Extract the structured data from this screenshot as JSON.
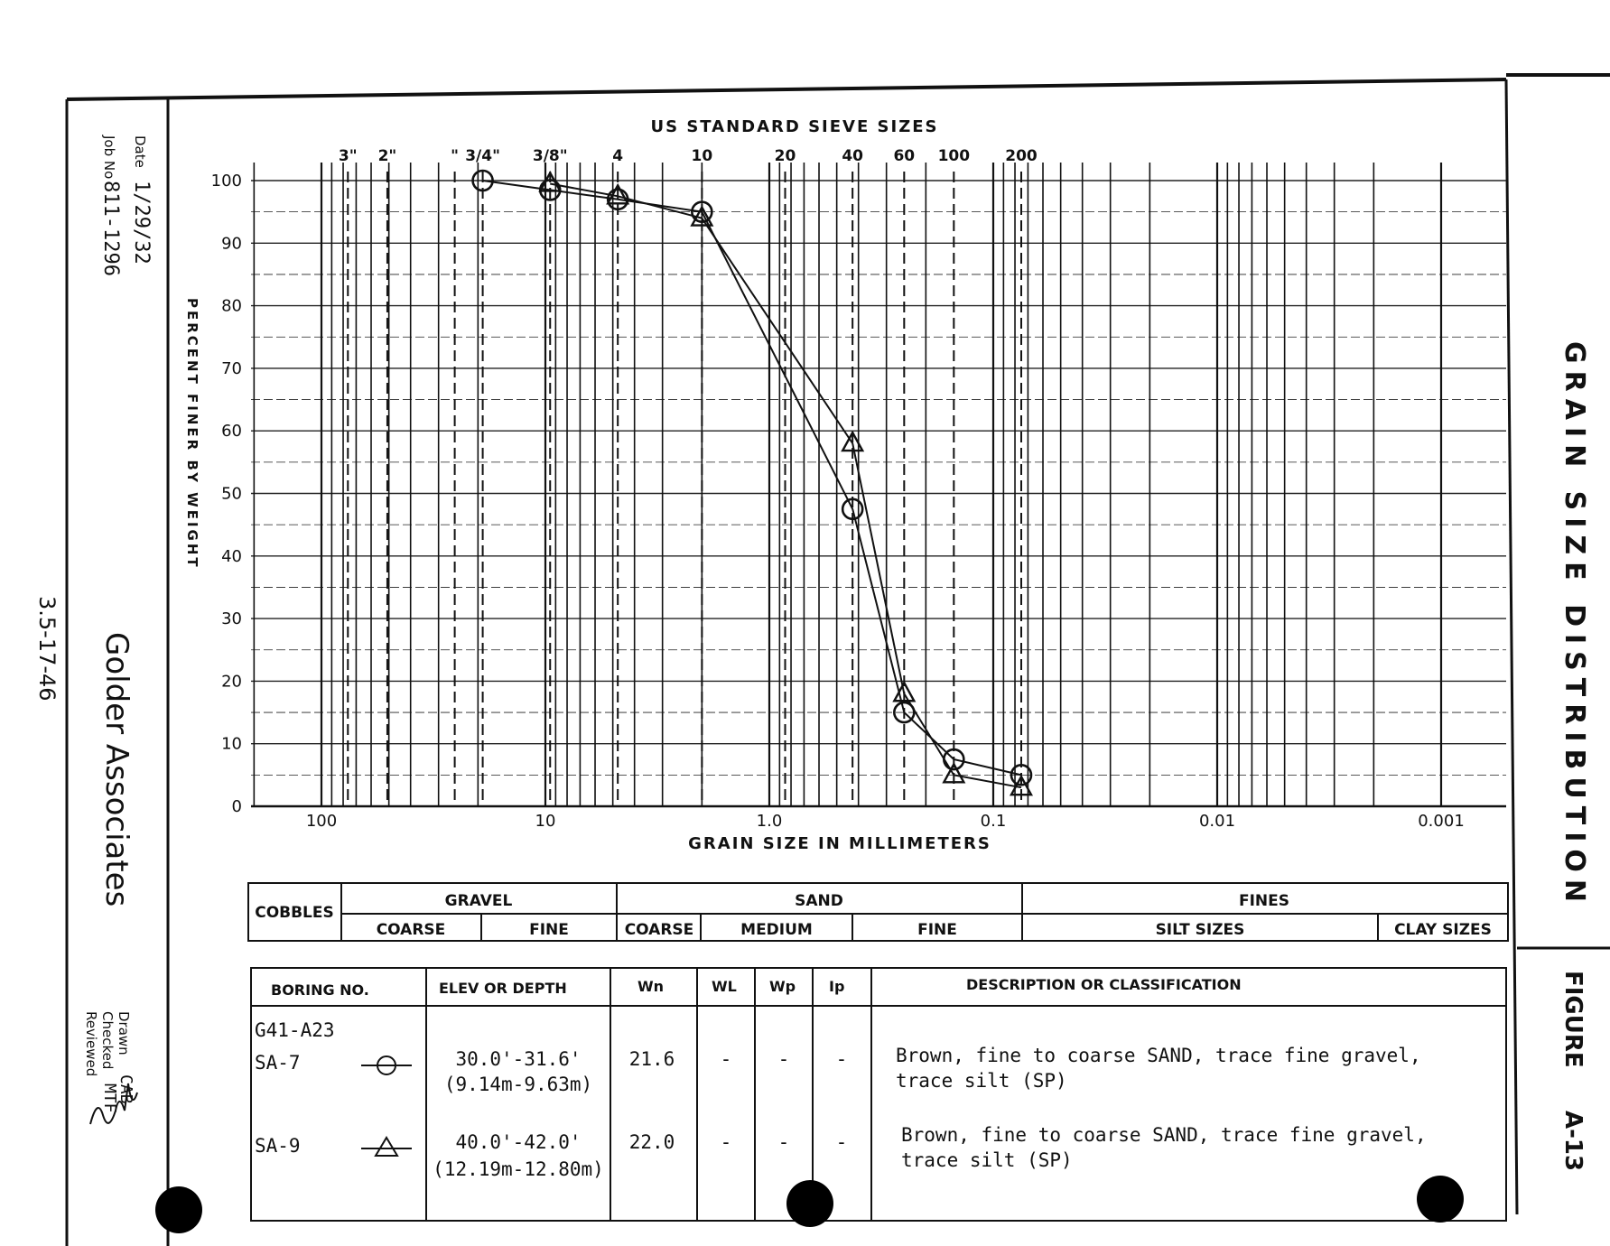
{
  "sheet": {
    "date_label": "Date",
    "date_value": "1/29/32",
    "job_label": "Job No",
    "job_value": "811-1296",
    "company": "Golder Associates",
    "page_ref": "3.5-17-46",
    "drawn_label": "Drawn",
    "drawn_value": "CAB",
    "checked_label": "Checked",
    "checked_value": "MTF",
    "reviewed_label": "Reviewed",
    "side_title": "GRAIN SIZE DISTRIBUTION",
    "figure_label": "FIGURE",
    "figure_value": "A-13"
  },
  "chart_data": {
    "type": "line",
    "title": "US STANDARD SIEVE SIZES",
    "xlabel": "GRAIN SIZE IN MILLIMETERS",
    "ylabel": "PERCENT FINER BY WEIGHT",
    "x_scale": "log-reversed",
    "xlim": [
      200,
      0.0007
    ],
    "ylim": [
      0,
      100
    ],
    "grid": true,
    "y_ticks": [
      "0",
      "10",
      "20",
      "30",
      "40",
      "50",
      "60",
      "70",
      "80",
      "90",
      "100"
    ],
    "x_ticks": [
      {
        "label": "100",
        "value": 100
      },
      {
        "label": "10",
        "value": 10
      },
      {
        "label": "1.0",
        "value": 1
      },
      {
        "label": "0.1",
        "value": 0.1
      },
      {
        "label": "0.01",
        "value": 0.01
      },
      {
        "label": "0.001",
        "value": 0.001
      }
    ],
    "sieves": [
      {
        "label": "3\"",
        "value": 76.2
      },
      {
        "label": "2\"",
        "value": 50.8
      },
      {
        "label": "\"",
        "value": 25.4
      },
      {
        "label": "3/4\"",
        "value": 19.05
      },
      {
        "label": "3/8\"",
        "value": 9.525
      },
      {
        "label": "4",
        "value": 4.75
      },
      {
        "label": "10",
        "value": 2.0
      },
      {
        "label": "20",
        "value": 0.85
      },
      {
        "label": "40",
        "value": 0.425
      },
      {
        "label": "60",
        "value": 0.25
      },
      {
        "label": "100",
        "value": 0.15
      },
      {
        "label": "200",
        "value": 0.075
      }
    ],
    "series": [
      {
        "name": "SA-7",
        "marker": "circle",
        "x": [
          19.05,
          9.525,
          4.75,
          2.0,
          0.425,
          0.25,
          0.15,
          0.075
        ],
        "y": [
          100,
          98.5,
          97,
          95,
          47.5,
          15,
          7.5,
          5
        ]
      },
      {
        "name": "SA-9",
        "marker": "triangle",
        "x": [
          9.525,
          4.75,
          2.0,
          0.425,
          0.25,
          0.15,
          0.075
        ],
        "y": [
          99.5,
          97.5,
          94,
          58,
          18,
          5,
          3
        ]
      }
    ]
  },
  "classification": {
    "cobbles": "COBBLES",
    "gravel": "GRAVEL",
    "gravel_coarse": "COARSE",
    "gravel_fine": "FINE",
    "sand": "SAND",
    "sand_coarse": "COARSE",
    "sand_medium": "MEDIUM",
    "sand_fine": "FINE",
    "fines": "FINES",
    "silt": "SILT  SIZES",
    "clay": "CLAY SIZES"
  },
  "table": {
    "headers": [
      "BORING NO.",
      "ELEV OR DEPTH",
      "Wn",
      "WL",
      "Wp",
      "Ip",
      "DESCRIPTION  OR  CLASSIFICATION"
    ],
    "boring_id": "G41-A23",
    "rows": [
      {
        "sample": "SA-7",
        "depth_ft": "30.0'-31.6'",
        "depth_m": "(9.14m-9.63m)",
        "wn": "21.6",
        "wl": "-",
        "wp": "-",
        "ip": "-",
        "desc1": "Brown, fine to coarse SAND, trace fine gravel,",
        "desc2": "trace silt (SP)"
      },
      {
        "sample": "SA-9",
        "depth_ft": "40.0'-42.0'",
        "depth_m": "(12.19m-12.80m)",
        "wn": "22.0",
        "wl": "-",
        "wp": "-",
        "ip": "-",
        "desc1": "Brown, fine to coarse SAND, trace fine gravel,",
        "desc2": "trace silt (SP)"
      }
    ]
  }
}
